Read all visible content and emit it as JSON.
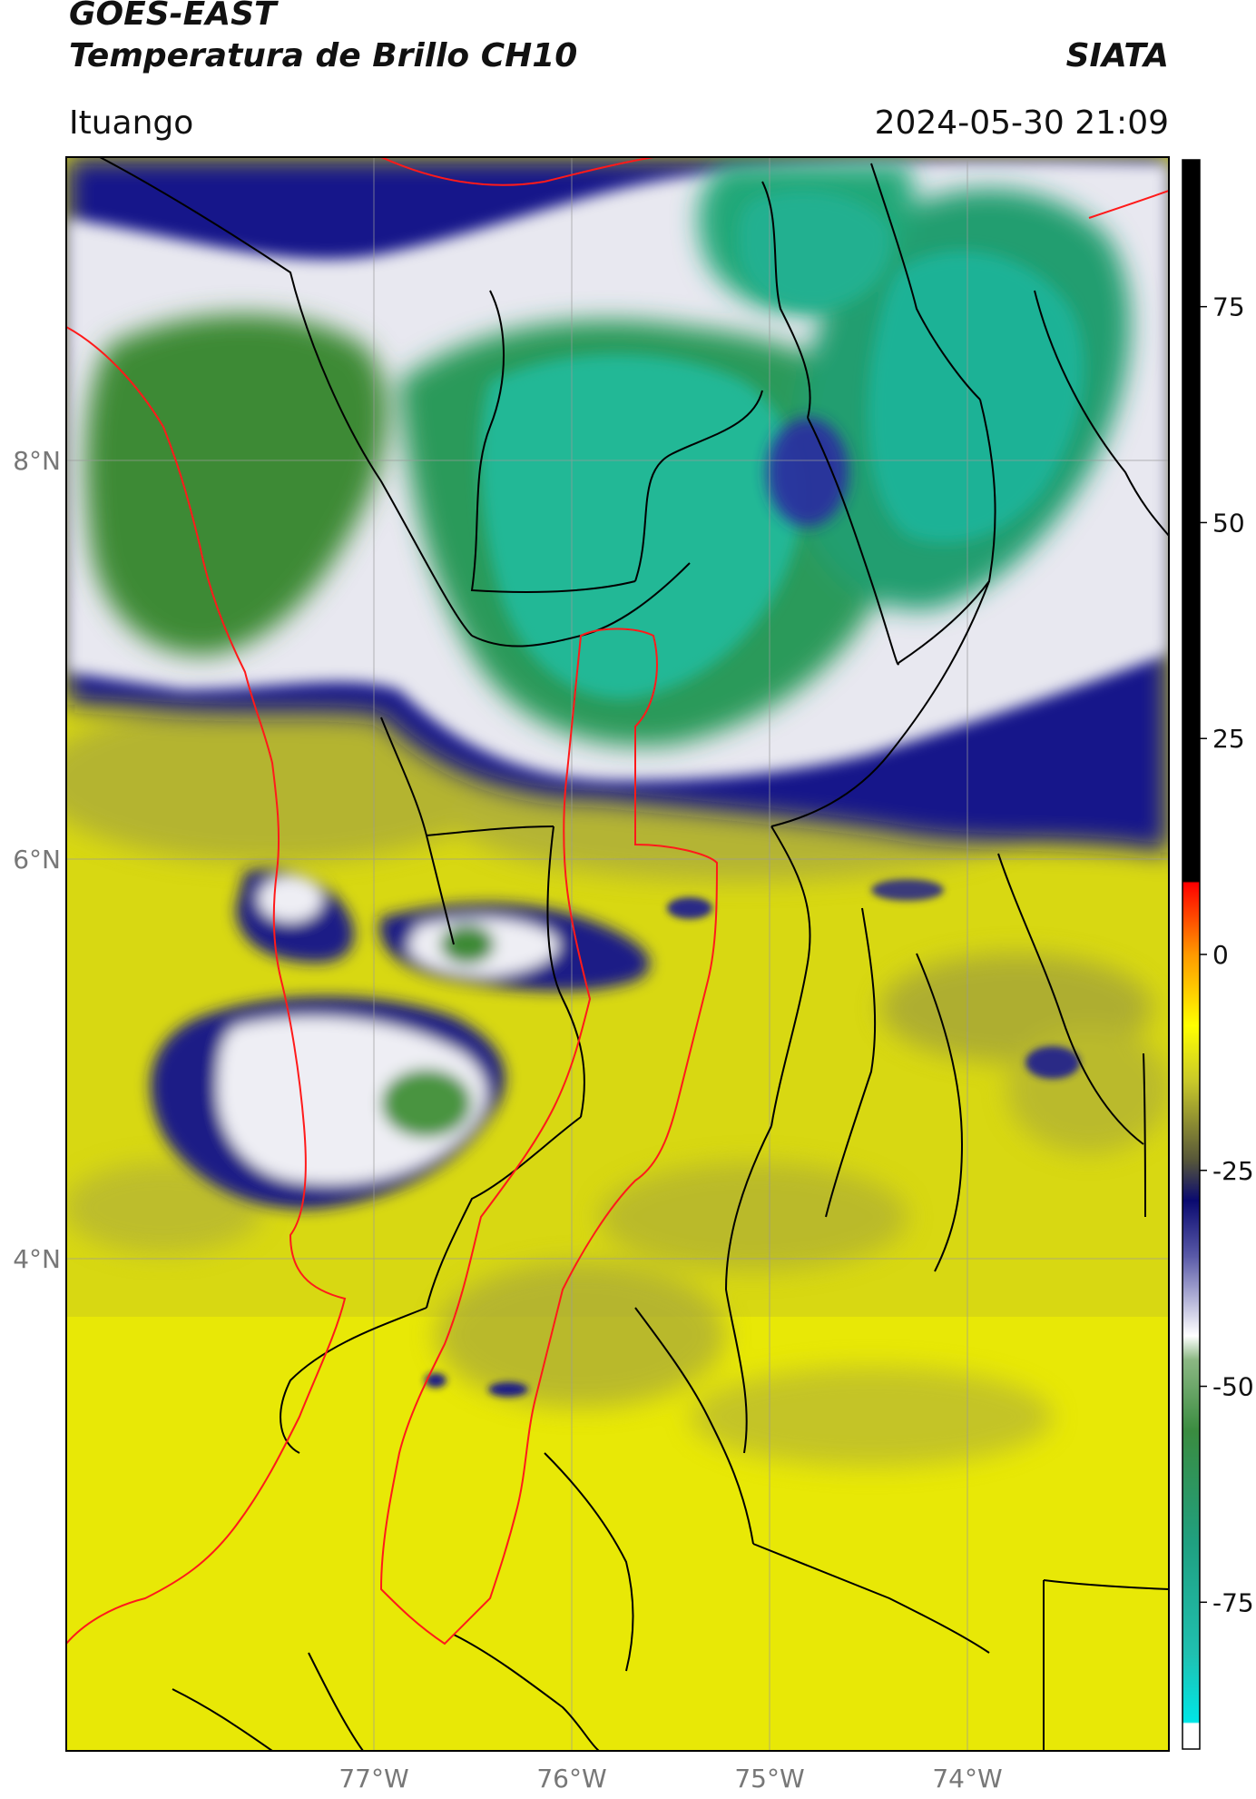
{
  "header": {
    "satellite": "GOES-EAST",
    "product": "Temperatura de Brillo CH10",
    "organization": "SIATA",
    "location": "Ituango",
    "datetime": "2024-05-30 21:09"
  },
  "map": {
    "latitude_labels": [
      "8°N",
      "6°N",
      "4°N"
    ],
    "longitude_labels": [
      "77°W",
      "76°W",
      "75°W",
      "74°W"
    ],
    "colors": {
      "warm": "#e6e600",
      "mid_olive": "#a8a83a",
      "cold_navy": "#16168a",
      "white": "#f4f4f8",
      "green": "#3d8a36",
      "teal": "#20b896",
      "boundary_black": "#000000",
      "boundary_red": "#ff1a1a"
    }
  },
  "colorbar": {
    "tick_labels": [
      "75",
      "50",
      "25",
      "0",
      "-25",
      "-50",
      "-75"
    ],
    "tick_values": [
      75,
      50,
      25,
      0,
      -25,
      -50,
      -75
    ],
    "range": [
      -92,
      92
    ]
  }
}
